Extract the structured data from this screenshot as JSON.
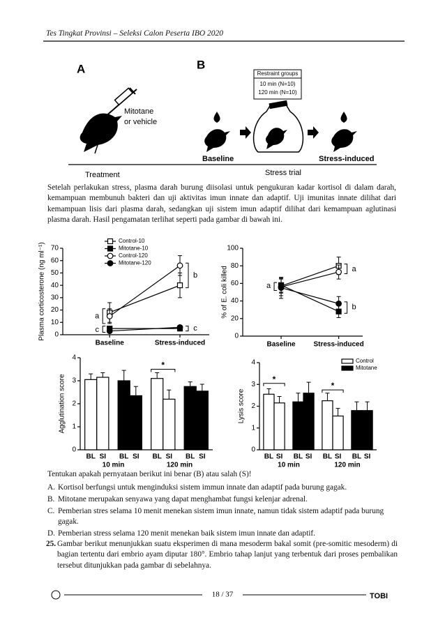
{
  "header": {
    "title": "Tes Tingkat Provinsi – Seleksi Calon Peserta IBO 2020"
  },
  "figure": {
    "a_label": "A",
    "injection": [
      "Mitotane",
      "or vehicle"
    ],
    "treatment": "Treatment",
    "b_label": "B",
    "restraint_title": "Restraint groups",
    "restraint_groups": [
      "10 min (N=10)",
      "120 min (N=10)"
    ],
    "baseline": "Baseline",
    "stress_trial": "Stress trial",
    "stress_induced": "Stress-induced"
  },
  "paragraph": "Setelah perlakukan stress, plasma darah burung diisolasi untuk pengukuran kadar kortisol di dalam darah, kemampuan membunuh bakteri dan uji aktivitas imun innate dan adaptif. Uji imunitas innate dilihat dari kemampuan lisis dari plasma darah, sedangkan uji sistem imun adaptif dilihat dari kemampuan aglutinasi plasma darah. Hasil pengamatan terlihat seperti pada gambar di bawah ini.",
  "chart_data": [
    {
      "type": "line",
      "y_label": "Plasma corticosterone (ng ml⁻¹)",
      "categories": [
        "Baseline",
        "Stress-induced"
      ],
      "ylim": [
        0,
        70
      ],
      "yticks": [
        0,
        10,
        20,
        30,
        40,
        50,
        60,
        70
      ],
      "legend": true,
      "series": [
        {
          "name": "Control-10",
          "color": "#000",
          "marker": "square-open",
          "values": [
            18,
            40
          ],
          "errors": [
            8,
            10
          ]
        },
        {
          "name": "Mitotane-10",
          "color": "#000",
          "marker": "square-filled",
          "values": [
            5,
            5
          ],
          "errors": [
            2,
            2
          ]
        },
        {
          "name": "Control-120",
          "color": "#000",
          "marker": "circle-open",
          "values": [
            15,
            56
          ],
          "errors": [
            6,
            8
          ]
        },
        {
          "name": "Mitotane-120",
          "color": "#000",
          "marker": "circle-filled",
          "values": [
            3,
            6
          ],
          "errors": [
            1,
            1
          ]
        }
      ],
      "annotations": [
        "a",
        "b",
        "c",
        "c"
      ]
    },
    {
      "type": "line",
      "y_label": "% of E. coli killed",
      "categories": [
        "Baseline",
        "Stress-induced"
      ],
      "ylim": [
        0,
        100
      ],
      "yticks": [
        0,
        20,
        40,
        60,
        80,
        100
      ],
      "legend": false,
      "series": [
        {
          "color": "#000",
          "marker": "square-open",
          "values": [
            57,
            80
          ],
          "errors": [
            8,
            10
          ]
        },
        {
          "color": "#000",
          "marker": "square-filled",
          "values": [
            58,
            28
          ],
          "errors": [
            8,
            7
          ]
        },
        {
          "color": "#000",
          "marker": "circle-open",
          "values": [
            56,
            73
          ],
          "errors": [
            10,
            8
          ]
        },
        {
          "color": "#000",
          "marker": "circle-filled",
          "values": [
            55,
            37
          ],
          "errors": [
            12,
            8
          ]
        }
      ],
      "annotations": [
        "a",
        "a",
        "b"
      ]
    },
    {
      "type": "bar",
      "y_label": "Agglutination score",
      "categories": [
        "BL",
        "SI",
        "BL",
        "SI",
        "BL",
        "SI",
        "BL",
        "SI"
      ],
      "groups": [
        "10 min",
        "120 min"
      ],
      "ylim": [
        0,
        4
      ],
      "yticks": [
        0,
        1,
        2,
        3,
        4
      ],
      "legend": false,
      "series": [
        {
          "color": "#ffffff",
          "values": [
            3.05,
            3.15,
            null,
            null,
            3.1,
            2.2,
            null,
            null
          ],
          "errors": [
            0.25,
            0.2,
            null,
            null,
            0.25,
            0.4,
            null,
            null
          ]
        },
        {
          "color": "#000000",
          "values": [
            null,
            null,
            3.0,
            2.35,
            null,
            null,
            2.75,
            2.55
          ],
          "errors": [
            null,
            null,
            0.45,
            0.4,
            null,
            null,
            0.2,
            0.3
          ]
        }
      ],
      "annotations": [
        "*"
      ]
    },
    {
      "type": "bar",
      "y_label": "Lysis score",
      "categories": [
        "BL",
        "SI",
        "BL",
        "SI",
        "BL",
        "SI",
        "BL",
        "SI"
      ],
      "groups": [
        "10 min",
        "120 min"
      ],
      "ylim": [
        0,
        4
      ],
      "yticks": [
        0,
        1,
        2,
        3,
        4
      ],
      "legend": true,
      "series": [
        {
          "name": "Control",
          "color": "#ffffff",
          "values": [
            2.55,
            2.15,
            null,
            null,
            2.25,
            1.55,
            null,
            null
          ],
          "errors": [
            0.25,
            0.3,
            null,
            null,
            0.35,
            0.35,
            null,
            null
          ]
        },
        {
          "name": "Mitotane",
          "color": "#000000",
          "values": [
            null,
            null,
            2.2,
            2.6,
            null,
            null,
            1.8,
            1.8
          ],
          "errors": [
            null,
            null,
            0.4,
            0.5,
            null,
            null,
            0.4,
            0.4
          ]
        }
      ],
      "annotations": [
        "*",
        "*"
      ]
    }
  ],
  "question_24": {
    "prompt": "Tentukan apakah pernyataan berikut ini benar (B) atau salah (S)!",
    "options": [
      {
        "letter": "A.",
        "text": "Kortisol berfungsi untuk menginduksi sistem immun innate dan adaptif pada burung gagak."
      },
      {
        "letter": "B.",
        "text": "Mitotane merupakan senyawa yang dapat menghambat fungsi kelenjar adrenal."
      },
      {
        "letter": "C.",
        "text": "Pemberian stres selama 10 menit menekan sistem imun innate, namun tidak sistem adaptif pada burung gagak."
      },
      {
        "letter": "D.",
        "text": "Pemberian stress selama 120 menit menekan baik sistem imun innate dan adaptif."
      }
    ]
  },
  "question_25": {
    "number": "25.",
    "text": "Gambar berikut menunjukkan suatu eksperimen di mana mesoderm bakal somit (pre-somitic mesoderm) di bagian tertentu dari embrio ayam diputar 180°. Embrio tahap lanjut yang terbentuk dari proses pembalikan tersebut ditunjukkan pada gambar di sebelahnya."
  },
  "footer": {
    "page": "18 / 37",
    "logo": "TOBI"
  }
}
